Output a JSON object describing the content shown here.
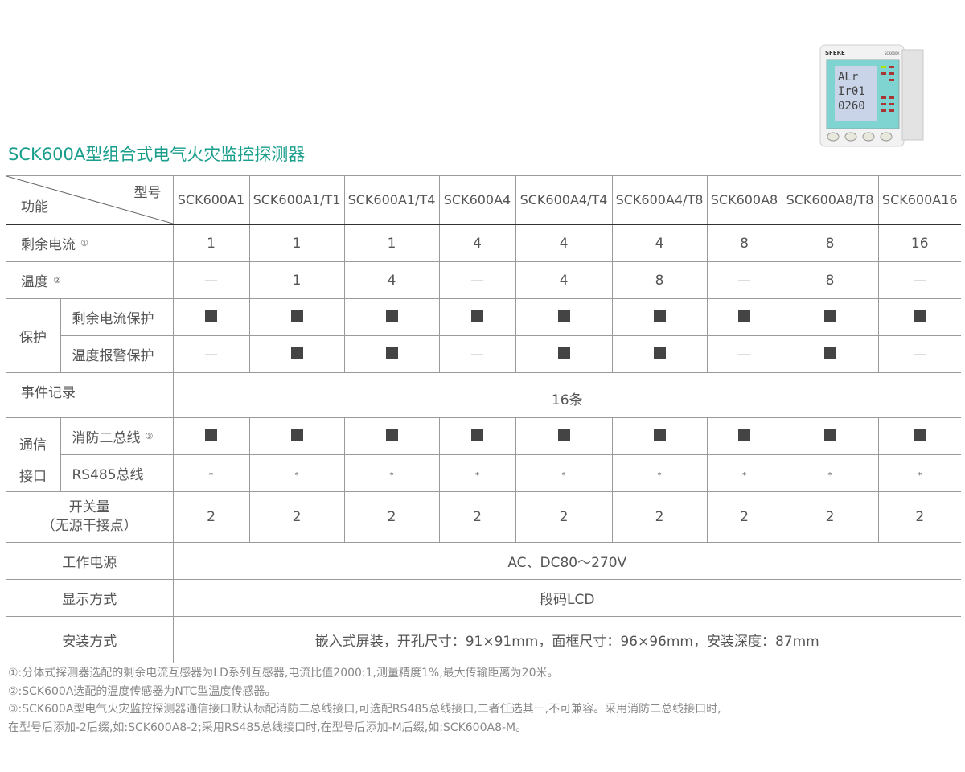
{
  "title": "SCK600A型组合式电气火灾监控探测器",
  "product_image": {
    "brand": "SFERE",
    "model": "SCK600A",
    "lcd_lines": [
      "ALr",
      "Ir01",
      "0260"
    ],
    "lcd_color": "#7fd3d0"
  },
  "colors": {
    "title": "#1a9e8c",
    "text": "#555555",
    "border": "#9a9a9a",
    "mark": "#444444"
  },
  "header": {
    "model_label": "型号",
    "function_label": "功能",
    "models": [
      "SCK600A1",
      "SCK600A1/T1",
      "SCK600A1/T4",
      "SCK600A4",
      "SCK600A4/T4",
      "SCK600A4/T8",
      "SCK600A8",
      "SCK600A8/T8",
      "SCK600A16"
    ]
  },
  "rows": {
    "residual_current": {
      "label": "剩余电流",
      "note": "①",
      "values": [
        "1",
        "1",
        "1",
        "4",
        "4",
        "4",
        "8",
        "8",
        "16"
      ]
    },
    "temperature": {
      "label": "温度",
      "note": "②",
      "values": [
        "—",
        "1",
        "4",
        "—",
        "4",
        "8",
        "—",
        "8",
        "—"
      ]
    },
    "protection": {
      "label": "保护",
      "residual": {
        "label": "剩余电流保护",
        "values": [
          "■",
          "■",
          "■",
          "■",
          "■",
          "■",
          "■",
          "■",
          "■"
        ]
      },
      "temp_alarm": {
        "label": "温度报警保护",
        "values": [
          "—",
          "■",
          "■",
          "—",
          "■",
          "■",
          "—",
          "■",
          "—"
        ]
      }
    },
    "event_log": {
      "label": "事件记录",
      "value": "16条"
    },
    "comm": {
      "label_line1": "通信",
      "label_line2": "接口",
      "fire_bus": {
        "label": "消防二总线",
        "note": "③",
        "values": [
          "■",
          "■",
          "■",
          "■",
          "■",
          "■",
          "■",
          "■",
          "■"
        ]
      },
      "rs485": {
        "label": "RS485总线",
        "values": [
          "*",
          "*",
          "*",
          "*",
          "*",
          "*",
          "*",
          "*",
          "*"
        ]
      }
    },
    "switch": {
      "label_line1": "开关量",
      "label_line2": "（无源干接点）",
      "values": [
        "2",
        "2",
        "2",
        "2",
        "2",
        "2",
        "2",
        "2",
        "2"
      ]
    },
    "power": {
      "label": "工作电源",
      "value": "AC、DC80～270V"
    },
    "display": {
      "label": "显示方式",
      "value": "段码LCD"
    },
    "install": {
      "label": "安装方式",
      "value": "嵌入式屏装，开孔尺寸：91×91mm，面框尺寸：96×96mm，安装深度：87mm"
    }
  },
  "notes": [
    "①:分体式探测器选配的剩余电流互感器为LD系列互感器,电流比值2000:1,测量精度1%,最大传输距离为20米。",
    "②:SCK600A选配的温度传感器为NTC型温度传感器。",
    "③:SCK600A型电气火灾监控探测器通信接口默认标配消防二总线接口,可选配RS485总线接口,二者任选其一,不可兼容。采用消防二总线接口时,",
    "在型号后添加-2后缀,如:SCK600A8-2;采用RS485总线接口时,在型号后添加-M后缀,如:SCK600A8-M。"
  ]
}
